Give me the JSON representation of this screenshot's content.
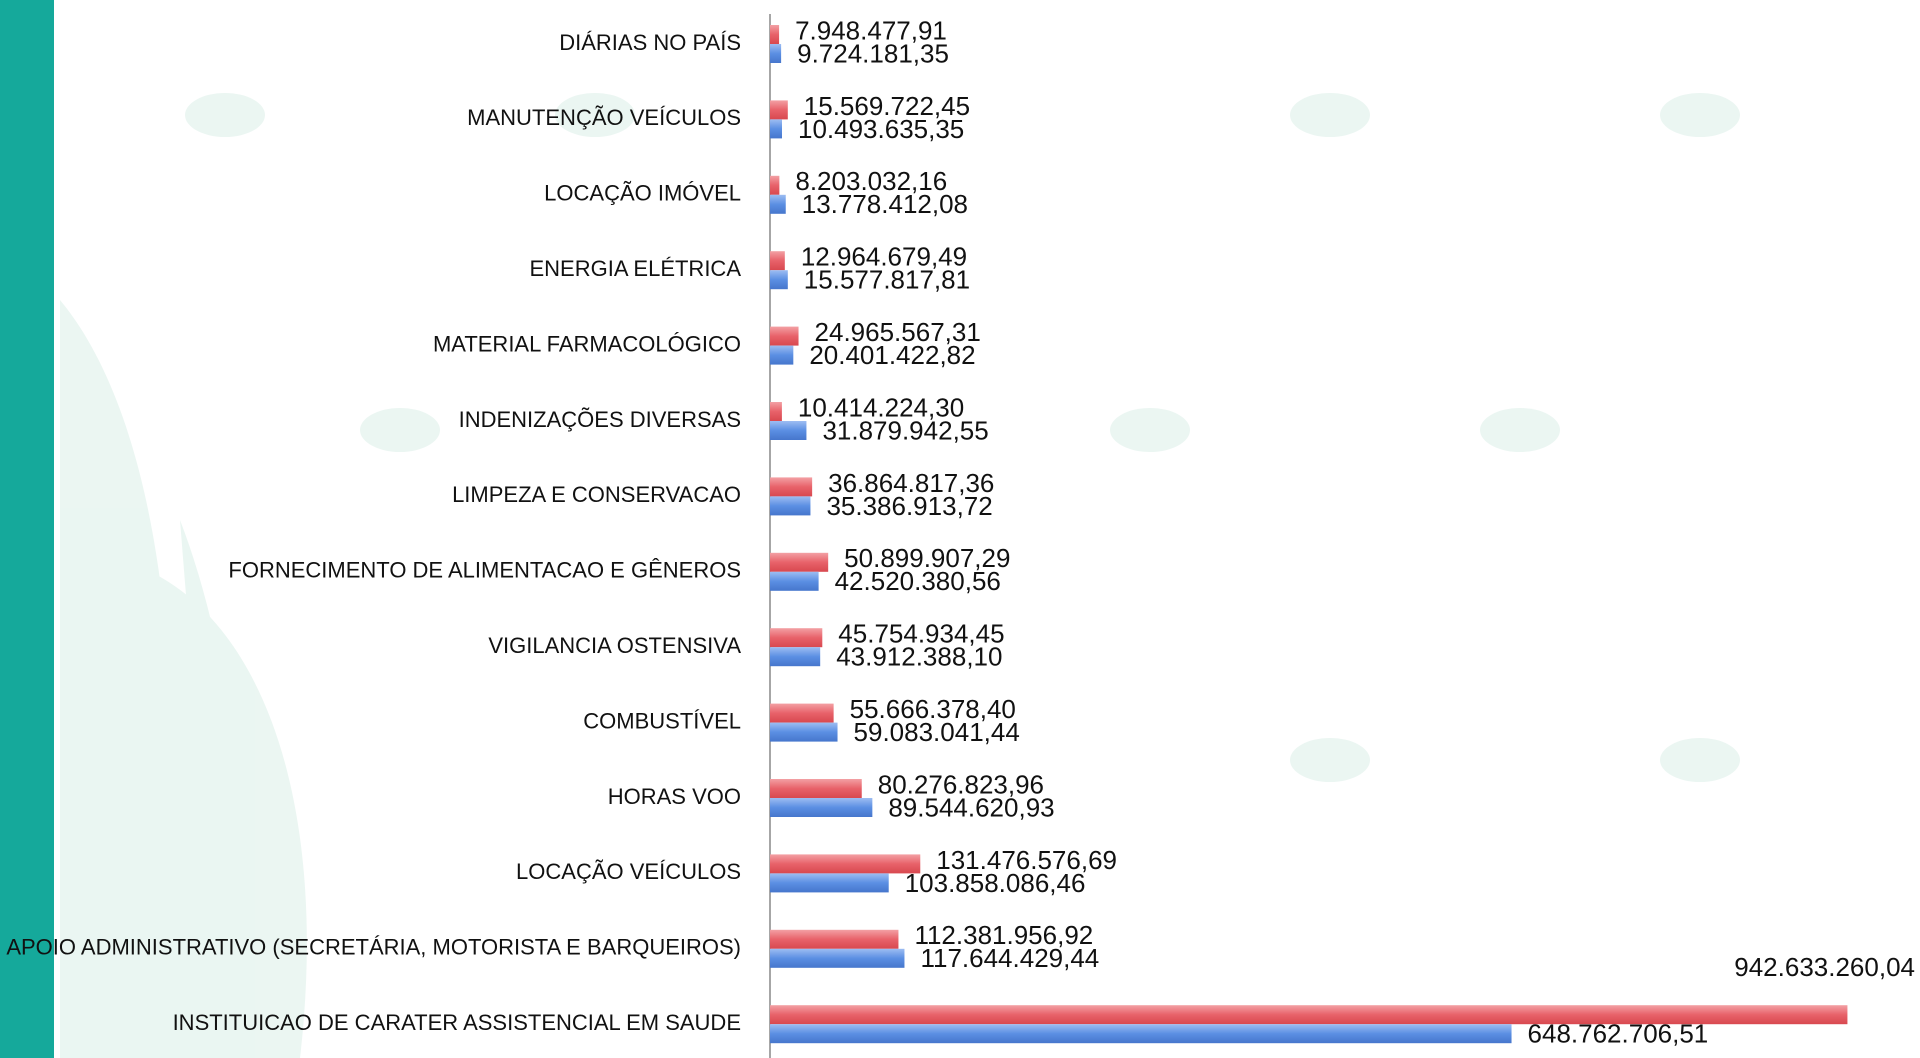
{
  "chart_data": {
    "type": "bar",
    "orientation": "horizontal",
    "categories": [
      "DIÁRIAS NO PAÍS",
      "MANUTENÇÃO VEÍCULOS",
      "LOCAÇÃO IMÓVEL",
      "ENERGIA ELÉTRICA",
      "MATERIAL FARMACOLÓGICO",
      "INDENIZAÇÕES DIVERSAS",
      "LIMPEZA E CONSERVACAO",
      "FORNECIMENTO DE ALIMENTACAO E GÊNEROS",
      "VIGILANCIA OSTENSIVA",
      "COMBUSTÍVEL",
      "HORAS VOO",
      "LOCAÇÃO VEÍCULOS",
      "APOIO ADMINISTRATIVO (SECRETÁRIA, MOTORISTA E BARQUEIROS)",
      "INSTITUICAO DE CARATER ASSISTENCIAL EM SAUDE"
    ],
    "series": [
      {
        "color": "#e8626a",
        "values": [
          7948477.91,
          15569722.45,
          8203032.16,
          12964679.49,
          24965567.31,
          10414224.3,
          36864817.36,
          50899907.29,
          45754934.45,
          55666378.4,
          80276823.96,
          131476576.69,
          112381956.92,
          942633260.04
        ],
        "value_labels": [
          "7.948.477,91",
          "15.569.722,45",
          "8.203.032,16",
          "12.964.679,49",
          "24.965.567,31",
          "10.414.224,30",
          "36.864.817,36",
          "50.899.907,29",
          "45.754.934,45",
          "55.666.378,40",
          "80.276.823,96",
          "131.476.576,69",
          "112.381.956,92",
          "942.633.260,04"
        ]
      },
      {
        "color": "#5b8fe3",
        "values": [
          9724181.35,
          10493635.35,
          13778412.08,
          15577817.81,
          20401422.82,
          31879942.55,
          35386913.72,
          42520380.56,
          43912388.1,
          59083041.44,
          89544620.93,
          103858086.46,
          117644429.44,
          648762706.51
        ],
        "value_labels": [
          "9.724.181,35",
          "10.493.635,35",
          "13.778.412,08",
          "15.577.817,81",
          "20.401.422,82",
          "31.879.942,55",
          "35.386.913,72",
          "42.520.380,56",
          "43.912.388,10",
          "59.083.041,44",
          "89.544.620,93",
          "103.858.086,46",
          "117.644.429,44",
          "648.762.706,51"
        ]
      }
    ],
    "xlim": [
      0,
      1000000000
    ]
  }
}
